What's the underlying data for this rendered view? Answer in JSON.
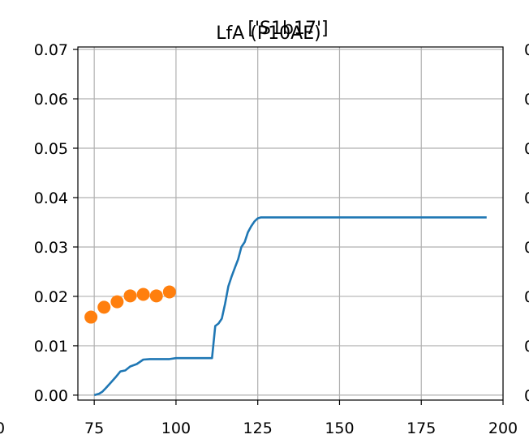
{
  "chart_data": {
    "type": "line",
    "title": "LfA (P10AE)",
    "title_overlap": "['S1b17']",
    "xlabel": "",
    "ylabel": "",
    "xlim": [
      70,
      200
    ],
    "ylim": [
      -0.001,
      0.0705
    ],
    "x_ticks": [
      75,
      100,
      125,
      150,
      175,
      200
    ],
    "x_tick_labels": [
      "75",
      "100",
      "125",
      "150",
      "175",
      "200"
    ],
    "y_ticks": [
      0.0,
      0.01,
      0.02,
      0.03,
      0.04,
      0.05,
      0.06,
      0.07
    ],
    "y_tick_labels": [
      "0.00",
      "0.01",
      "0.02",
      "0.03",
      "0.04",
      "0.05",
      "0.06",
      "0.07"
    ],
    "clipped_edge_labels": {
      "left_x_label": "0",
      "right_y_label": "0"
    },
    "grid": true,
    "series": [
      {
        "kind": "line",
        "color": "#1f77b4",
        "x": [
          75,
          76.5,
          77.5,
          78.5,
          80,
          81.5,
          83,
          84.5,
          86,
          88,
          90,
          92,
          94,
          96,
          98,
          100,
          105,
          110,
          111,
          112,
          113,
          114,
          115,
          116,
          117,
          118,
          119,
          120,
          121,
          122,
          123,
          124,
          125,
          126,
          127,
          130,
          150,
          175,
          195
        ],
        "y": [
          0.0,
          0.0003,
          0.0007,
          0.0014,
          0.0025,
          0.0036,
          0.0048,
          0.005,
          0.0058,
          0.0063,
          0.0072,
          0.0073,
          0.0073,
          0.0073,
          0.0073,
          0.0075,
          0.0075,
          0.0075,
          0.0075,
          0.014,
          0.0145,
          0.0155,
          0.0185,
          0.022,
          0.024,
          0.0258,
          0.0275,
          0.03,
          0.031,
          0.033,
          0.0342,
          0.0352,
          0.0358,
          0.036,
          0.036,
          0.036,
          0.036,
          0.036,
          0.036
        ]
      },
      {
        "kind": "scatter",
        "color": "#ff7f0e",
        "x": [
          74,
          78,
          82,
          86,
          90,
          94,
          98
        ],
        "y": [
          0.0158,
          0.0178,
          0.0189,
          0.0201,
          0.0204,
          0.0201,
          0.0209
        ]
      }
    ]
  }
}
